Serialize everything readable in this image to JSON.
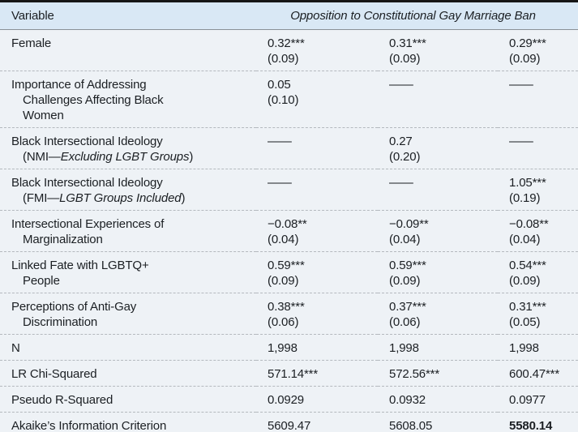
{
  "colors": {
    "header_bg": "#d9e8f5",
    "body_bg": "#eef2f6",
    "border_dark": "#161616",
    "rule": "#8a9096",
    "dash": "#b4b9be",
    "text": "#1b1f23"
  },
  "table": {
    "header": {
      "variable_label": "Variable",
      "span_title": "Opposition to Constitutional Gay Marriage Ban"
    },
    "rows": [
      {
        "label": [
          [
            {
              "t": "Female"
            }
          ]
        ],
        "cells": [
          {
            "v": "0.32***",
            "se": "(0.09)"
          },
          {
            "v": "0.31***",
            "se": "(0.09)"
          },
          {
            "v": "0.29***",
            "se": "(0.09)"
          }
        ]
      },
      {
        "label": [
          [
            {
              "t": "Importance of Addressing"
            }
          ],
          [
            {
              "t": "Challenges Affecting Black"
            }
          ],
          [
            {
              "t": "Women"
            }
          ]
        ],
        "cells": [
          {
            "v": "0.05",
            "se": "(0.10)"
          },
          {
            "v": "——"
          },
          {
            "v": "——"
          }
        ]
      },
      {
        "label": [
          [
            {
              "t": "Black Intersectional Ideology"
            }
          ],
          [
            {
              "t": "(NMI—"
            },
            {
              "t": "Excluding LGBT Groups",
              "i": true
            },
            {
              "t": ")"
            }
          ]
        ],
        "cells": [
          {
            "v": "——"
          },
          {
            "v": "0.27",
            "se": "(0.20)"
          },
          {
            "v": "——"
          }
        ]
      },
      {
        "label": [
          [
            {
              "t": "Black Intersectional Ideology"
            }
          ],
          [
            {
              "t": "(FMI—"
            },
            {
              "t": "LGBT Groups Included",
              "i": true
            },
            {
              "t": ")"
            }
          ]
        ],
        "cells": [
          {
            "v": "——"
          },
          {
            "v": "——"
          },
          {
            "v": "1.05***",
            "se": "(0.19)"
          }
        ]
      },
      {
        "label": [
          [
            {
              "t": "Intersectional Experiences of"
            }
          ],
          [
            {
              "t": "Marginalization"
            }
          ]
        ],
        "cells": [
          {
            "v": "−0.08**",
            "se": "(0.04)"
          },
          {
            "v": "−0.09**",
            "se": "(0.04)"
          },
          {
            "v": "−0.08**",
            "se": "(0.04)"
          }
        ]
      },
      {
        "label": [
          [
            {
              "t": "Linked Fate with LGBTQ+"
            }
          ],
          [
            {
              "t": "People"
            }
          ]
        ],
        "cells": [
          {
            "v": "0.59***",
            "se": "(0.09)"
          },
          {
            "v": "0.59***",
            "se": "(0.09)"
          },
          {
            "v": "0.54***",
            "se": "(0.09)"
          }
        ]
      },
      {
        "label": [
          [
            {
              "t": "Perceptions of Anti-Gay"
            }
          ],
          [
            {
              "t": "Discrimination"
            }
          ]
        ],
        "cells": [
          {
            "v": "0.38***",
            "se": "(0.06)"
          },
          {
            "v": "0.37***",
            "se": "(0.06)"
          },
          {
            "v": "0.31***",
            "se": "(0.05)"
          }
        ]
      },
      {
        "label": [
          [
            {
              "t": "N"
            }
          ]
        ],
        "cells": [
          {
            "v": "1,998"
          },
          {
            "v": "1,998"
          },
          {
            "v": "1,998"
          }
        ]
      },
      {
        "label": [
          [
            {
              "t": "LR Chi-Squared"
            }
          ]
        ],
        "cells": [
          {
            "v": "571.14***"
          },
          {
            "v": "572.56***"
          },
          {
            "v": "600.47***"
          }
        ]
      },
      {
        "label": [
          [
            {
              "t": "Pseudo R-Squared"
            }
          ]
        ],
        "cells": [
          {
            "v": "0.0929"
          },
          {
            "v": "0.0932"
          },
          {
            "v": "0.0977"
          }
        ]
      },
      {
        "label": [
          [
            {
              "t": "Akaike’s Information Criterion"
            }
          ]
        ],
        "cells": [
          {
            "v": "5609.47"
          },
          {
            "v": "5608.05"
          },
          {
            "v": "5580.14",
            "bold": true
          }
        ]
      }
    ]
  }
}
